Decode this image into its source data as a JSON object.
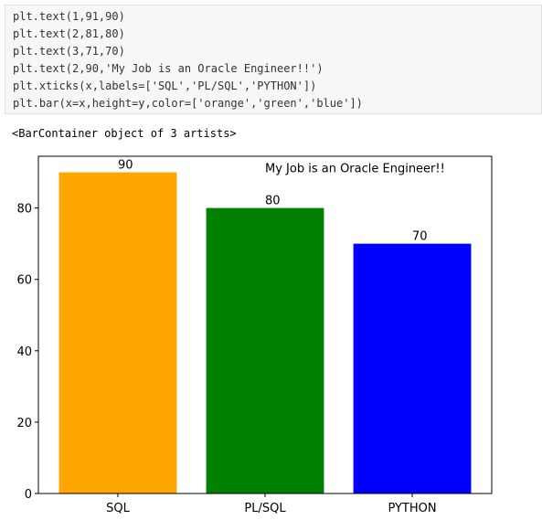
{
  "code": [
    "plt.text(1,91,90)",
    "plt.text(2,81,80)",
    "plt.text(3,71,70)",
    "plt.text(2,90,'My Job is an Oracle Engineer!!')",
    "plt.xticks(x,labels=['SQL','PL/SQL','PYTHON'])",
    "plt.bar(x=x,height=y,color=['orange','green','blue'])"
  ],
  "output": "<BarContainer object of 3 artists>",
  "chart_data": {
    "type": "bar",
    "x": [
      1,
      2,
      3
    ],
    "values": [
      90,
      80,
      70
    ],
    "colors": [
      "orange",
      "green",
      "blue"
    ],
    "xlim": [
      0.46,
      3.54
    ],
    "xticks": [
      {
        "value": 1,
        "label": "SQL"
      },
      {
        "value": 2,
        "label": "PL/SQL"
      },
      {
        "value": 3,
        "label": "PYTHON"
      }
    ],
    "ylim": [
      0,
      94.5
    ],
    "yticks": [
      0,
      20,
      40,
      60,
      80
    ],
    "annotations": [
      {
        "text": "My Job is an Oracle Engineer!!",
        "x": 2,
        "y": 90
      }
    ]
  }
}
